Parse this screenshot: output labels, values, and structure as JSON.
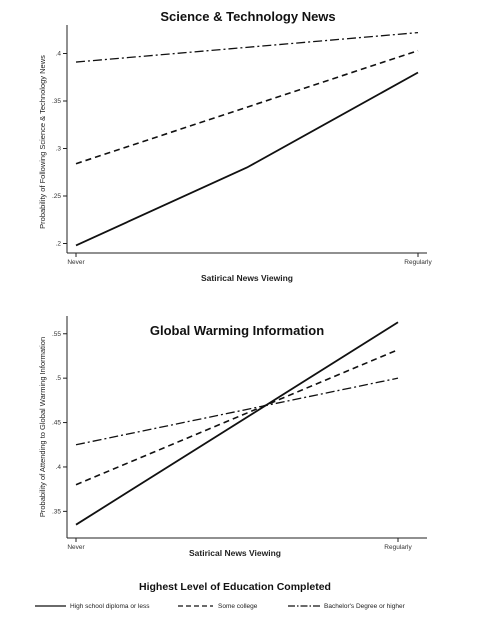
{
  "chart_data": [
    {
      "type": "line",
      "title": "Science & Technology News",
      "xlabel": "Satirical News Viewing",
      "ylabel": "Probability of Following Science & Technology News",
      "categories": [
        "Never",
        "Regularly"
      ],
      "ylim": [
        0.19,
        0.43
      ],
      "yticks": [
        ".2",
        ".25",
        ".3",
        ".35",
        ".4"
      ],
      "series": [
        {
          "name": "High school diploma or less",
          "style": "solid",
          "values": [
            0.198,
            0.38
          ],
          "mid": 0.28
        },
        {
          "name": "Some college",
          "style": "dashed",
          "values": [
            0.284,
            0.403
          ]
        },
        {
          "name": "Bachelor's Degree or higher",
          "style": "dashdot",
          "values": [
            0.391,
            0.422
          ]
        }
      ]
    },
    {
      "type": "line",
      "title": "Global Warming Information",
      "xlabel": "Satirical News Viewing",
      "ylabel": "Probability of Attending to Global Warming Information",
      "categories": [
        "Never",
        "Regularly"
      ],
      "ylim": [
        0.32,
        0.57
      ],
      "yticks": [
        ".35",
        ".4",
        ".45",
        ".5",
        ".55"
      ],
      "series": [
        {
          "name": "High school diploma or less",
          "style": "solid",
          "values": [
            0.335,
            0.563
          ]
        },
        {
          "name": "Some college",
          "style": "dashed",
          "values": [
            0.38,
            0.532
          ]
        },
        {
          "name": "Bachelor's Degree or higher",
          "style": "dashdot",
          "values": [
            0.425,
            0.5
          ]
        }
      ]
    }
  ],
  "legend": {
    "title": "Highest Level of Education Completed",
    "items": [
      "High school diploma or less",
      "Some college",
      "Bachelor's Degree or higher"
    ]
  },
  "colors": {
    "line": "#111111",
    "axis": "#222222"
  }
}
